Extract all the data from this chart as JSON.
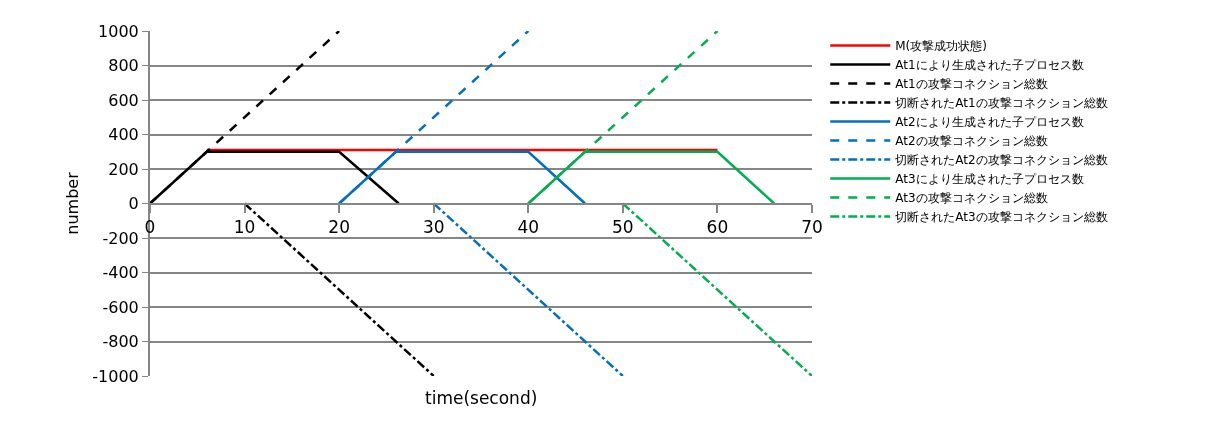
{
  "chart_data": {
    "type": "line",
    "xlabel": "time(second)",
    "ylabel": "number",
    "xlim": [
      0,
      70
    ],
    "xticks": [
      0,
      10,
      20,
      30,
      40,
      50,
      60,
      70
    ],
    "ylim": [
      -1000,
      1000
    ],
    "yticks": [
      -1000,
      -800,
      -600,
      -400,
      -200,
      0,
      200,
      400,
      600,
      800,
      1000
    ],
    "grid": "y",
    "legend": "right",
    "marker": "none",
    "series": [
      {
        "name": "M(攻撃成功状態)",
        "color": "#ff0000",
        "line_style": "solid",
        "x": [
          6,
          60
        ],
        "values": [
          310,
          310
        ]
      },
      {
        "name": "At1により生成された子プロセス数",
        "color": "#000000",
        "line_style": "solid",
        "x": [
          0,
          6,
          20,
          26.3
        ],
        "values": [
          0,
          300,
          300,
          0
        ]
      },
      {
        "name": "At1の攻撃コネクション総数",
        "color": "#000000",
        "line_style": "dashed",
        "x": [
          0,
          20
        ],
        "values": [
          0,
          1000
        ]
      },
      {
        "name": "切断されたAt1の攻撃コネクション総数",
        "color": "#000000",
        "line_style": "dashdot",
        "x": [
          10,
          30
        ],
        "values": [
          0,
          -1000
        ]
      },
      {
        "name": "At2により生成された子プロセス数",
        "color": "#0070c0",
        "line_style": "solid",
        "x": [
          20,
          26,
          40,
          46
        ],
        "values": [
          0,
          300,
          300,
          0
        ]
      },
      {
        "name": "At2の攻撃コネクション総数",
        "color": "#0070c0",
        "line_style": "dashed",
        "x": [
          20,
          40
        ],
        "values": [
          0,
          1000
        ]
      },
      {
        "name": "切断されたAt2の攻撃コネクション総数",
        "color": "#0070c0",
        "line_style": "dashdot",
        "x": [
          30,
          50
        ],
        "values": [
          0,
          -1000
        ]
      },
      {
        "name": "At3により生成された子プロセス数",
        "color": "#00b050",
        "line_style": "solid",
        "x": [
          40,
          46,
          60,
          66
        ],
        "values": [
          0,
          300,
          300,
          0
        ]
      },
      {
        "name": "At3の攻撃コネクション総数",
        "color": "#00b050",
        "line_style": "dashed",
        "x": [
          40,
          60
        ],
        "values": [
          0,
          1000
        ]
      },
      {
        "name": "切断されたAt3の攻撃コネクション総数",
        "color": "#00b050",
        "line_style": "dashdot",
        "x": [
          50,
          70
        ],
        "values": [
          0,
          -1000
        ]
      }
    ]
  }
}
